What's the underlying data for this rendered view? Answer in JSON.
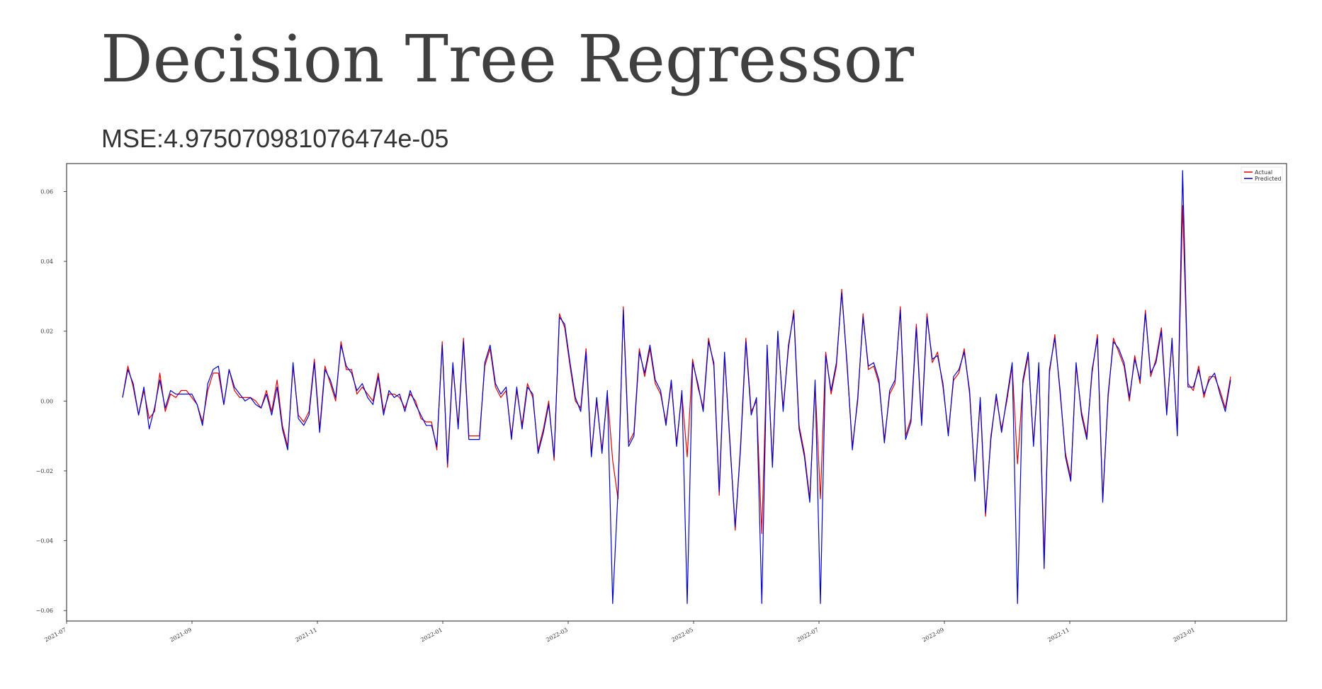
{
  "slide": {
    "title": "Decision Tree Regressor",
    "mse": "MSE:4.975070981076474e-05"
  },
  "chart_data": {
    "type": "line",
    "xlabel": "",
    "ylabel": "",
    "x_range": [
      "2021-07",
      "2023-01"
    ],
    "ylim": [
      -0.063,
      0.068
    ],
    "y_ticks": [
      -0.06,
      -0.04,
      -0.02,
      0.0,
      0.02,
      0.04,
      0.06
    ],
    "y_tick_labels": [
      "−0.06",
      "−0.04",
      "−0.02",
      "0.00",
      "0.02",
      "0.04",
      "0.06"
    ],
    "x_ticks": [
      "2021-07",
      "2021-09",
      "2021-11",
      "2022-01",
      "2022-03",
      "2022-05",
      "2022-07",
      "2022-09",
      "2022-11",
      "2023-01"
    ],
    "legend": {
      "position": "top-right",
      "entries": [
        {
          "name": "Actual",
          "color": "#e00000"
        },
        {
          "name": "Predicted",
          "color": "#0000cc"
        }
      ]
    },
    "grid": false,
    "series": [
      {
        "name": "Actual",
        "color": "#e00000",
        "values": [
          0.001,
          0.01,
          0.004,
          -0.004,
          0.003,
          -0.005,
          -0.003,
          0.008,
          -0.003,
          0.002,
          0.001,
          0.003,
          0.003,
          0.001,
          -0.001,
          -0.006,
          0.003,
          0.008,
          0.008,
          -0.001,
          0.009,
          0.003,
          0.001,
          0.001,
          0.001,
          0.0,
          -0.002,
          0.003,
          -0.003,
          0.006,
          -0.007,
          -0.013,
          0.01,
          -0.004,
          -0.006,
          -0.003,
          0.012,
          -0.008,
          0.01,
          0.005,
          0.0,
          0.017,
          0.009,
          0.009,
          0.002,
          0.004,
          0.002,
          0.0,
          0.008,
          -0.003,
          0.002,
          0.002,
          0.001,
          -0.002,
          0.002,
          0.0,
          -0.005,
          -0.006,
          -0.006,
          -0.014,
          0.017,
          -0.019,
          0.01,
          -0.007,
          0.018,
          -0.01,
          -0.01,
          -0.01,
          0.01,
          0.015,
          0.004,
          0.001,
          0.003,
          -0.01,
          0.003,
          -0.007,
          0.005,
          0.001,
          -0.014,
          -0.008,
          0.0,
          -0.017,
          0.025,
          0.021,
          0.01,
          0.0,
          -0.002,
          0.015,
          -0.015,
          0.0,
          -0.014,
          0.002,
          -0.017,
          -0.028,
          0.027,
          -0.012,
          -0.009,
          0.015,
          0.007,
          0.015,
          0.005,
          0.002,
          -0.006,
          0.005,
          -0.012,
          0.002,
          -0.016,
          0.012,
          0.004,
          -0.002,
          0.018,
          0.01,
          -0.027,
          0.013,
          -0.011,
          -0.037,
          -0.013,
          0.018,
          -0.003,
          0.0,
          -0.038,
          0.015,
          -0.018,
          0.019,
          -0.002,
          0.015,
          0.026,
          -0.007,
          -0.015,
          -0.028,
          0.005,
          -0.028,
          0.014,
          0.002,
          0.01,
          0.032,
          0.01,
          -0.013,
          0.0,
          0.025,
          0.009,
          0.01,
          0.005,
          -0.011,
          0.002,
          0.005,
          0.027,
          -0.01,
          -0.005,
          0.022,
          -0.006,
          0.025,
          0.011,
          0.014,
          0.004,
          -0.009,
          0.006,
          0.008,
          0.015,
          0.002,
          -0.022,
          0.0,
          -0.033,
          -0.01,
          0.001,
          -0.008,
          0.0,
          0.01,
          -0.018,
          0.005,
          0.013,
          -0.012,
          0.01,
          -0.045,
          0.008,
          0.019,
          0.002,
          -0.015,
          -0.022,
          0.01,
          -0.003,
          -0.01,
          0.008,
          0.019,
          -0.028,
          0.001,
          0.018,
          0.014,
          0.01,
          0.0,
          0.013,
          0.005,
          0.026,
          0.007,
          0.012,
          0.021,
          -0.003,
          0.017,
          -0.009,
          0.056,
          0.005,
          0.003,
          0.01,
          0.001,
          0.007,
          0.007,
          0.003,
          -0.002,
          0.007
        ]
      },
      {
        "name": "Predicted",
        "color": "#0000cc",
        "values": [
          0.001,
          0.009,
          0.005,
          -0.004,
          0.004,
          -0.008,
          -0.002,
          0.006,
          -0.002,
          0.003,
          0.002,
          0.002,
          0.002,
          0.002,
          -0.001,
          -0.007,
          0.005,
          0.009,
          0.01,
          -0.001,
          0.009,
          0.004,
          0.002,
          0.0,
          0.001,
          -0.001,
          -0.002,
          0.002,
          -0.004,
          0.004,
          -0.008,
          -0.014,
          0.011,
          -0.005,
          -0.007,
          -0.004,
          0.011,
          -0.009,
          0.009,
          0.006,
          0.001,
          0.016,
          0.01,
          0.008,
          0.003,
          0.005,
          0.001,
          -0.001,
          0.007,
          -0.004,
          0.003,
          0.001,
          0.002,
          -0.003,
          0.003,
          -0.001,
          -0.004,
          -0.007,
          -0.007,
          -0.013,
          0.016,
          -0.018,
          0.011,
          -0.008,
          0.017,
          -0.011,
          -0.011,
          -0.011,
          0.011,
          0.016,
          0.005,
          0.002,
          0.004,
          -0.011,
          0.004,
          -0.008,
          0.004,
          0.002,
          -0.015,
          -0.009,
          -0.001,
          -0.016,
          0.024,
          0.022,
          0.011,
          0.001,
          -0.003,
          0.014,
          -0.016,
          0.001,
          -0.015,
          0.003,
          -0.058,
          -0.026,
          0.026,
          -0.013,
          -0.01,
          0.014,
          0.008,
          0.016,
          0.006,
          0.003,
          -0.007,
          0.006,
          -0.013,
          0.003,
          -0.058,
          0.011,
          0.005,
          -0.003,
          0.017,
          0.011,
          -0.026,
          0.014,
          -0.012,
          -0.036,
          -0.014,
          0.017,
          -0.004,
          0.001,
          -0.058,
          0.016,
          -0.019,
          0.02,
          -0.003,
          0.016,
          0.025,
          -0.008,
          -0.016,
          -0.029,
          0.006,
          -0.058,
          0.013,
          0.003,
          0.011,
          0.031,
          0.011,
          -0.014,
          0.001,
          0.024,
          0.01,
          0.011,
          0.006,
          -0.012,
          0.003,
          0.006,
          0.026,
          -0.011,
          -0.006,
          0.021,
          -0.007,
          0.024,
          0.012,
          0.013,
          0.005,
          -0.01,
          0.007,
          0.009,
          0.014,
          0.003,
          -0.023,
          0.001,
          -0.032,
          -0.011,
          0.002,
          -0.009,
          0.001,
          0.011,
          -0.058,
          0.006,
          0.014,
          -0.013,
          0.011,
          -0.048,
          0.009,
          0.018,
          0.003,
          -0.016,
          -0.023,
          0.011,
          -0.004,
          -0.011,
          0.009,
          0.018,
          -0.029,
          0.002,
          0.017,
          0.015,
          0.011,
          0.001,
          0.012,
          0.006,
          0.025,
          0.008,
          0.011,
          0.02,
          -0.004,
          0.018,
          -0.01,
          0.066,
          0.004,
          0.004,
          0.009,
          0.002,
          0.006,
          0.008,
          0.002,
          -0.003,
          0.006
        ]
      }
    ]
  }
}
